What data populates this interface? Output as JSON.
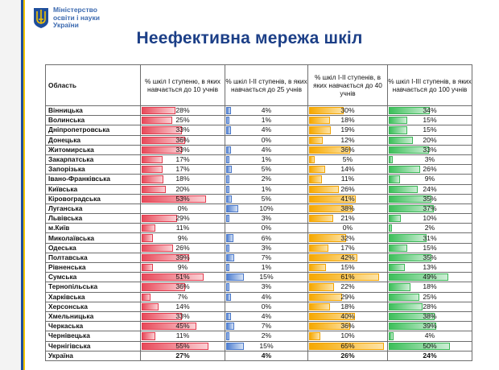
{
  "header": {
    "ministry_lines": [
      "Міністерство",
      "освіти і науки",
      "України"
    ],
    "title": "Неефективна мережа шкіл"
  },
  "table": {
    "columns": [
      "Область",
      "% шкіл І ступеню, в яких навчається до 10 учнів",
      "% шкіл І-ІІ ступенів, в яких навчається до 25 учнів",
      "% шкіл І-ІІ ступенів, в яких навчається до 40 учнів",
      "% шкіл І-ІІІ ступенів, в яких навчається до 100 учнів"
    ],
    "rows": [
      {
        "region": "Вінницька",
        "v": [
          "28%",
          "4%",
          "30%",
          "34%"
        ],
        "p": [
          28,
          4,
          30,
          34
        ]
      },
      {
        "region": "Волинська",
        "v": [
          "25%",
          "1%",
          "18%",
          "15%"
        ],
        "p": [
          25,
          1,
          18,
          15
        ]
      },
      {
        "region": "Дніпропетровська",
        "v": [
          "33%",
          "4%",
          "19%",
          "15%"
        ],
        "p": [
          33,
          4,
          19,
          15
        ]
      },
      {
        "region": "Донецька",
        "v": [
          "36%",
          "0%",
          "12%",
          "20%"
        ],
        "p": [
          36,
          0,
          12,
          20
        ]
      },
      {
        "region": "Житомирська",
        "v": [
          "33%",
          "4%",
          "36%",
          "33%"
        ],
        "p": [
          33,
          4,
          36,
          33
        ]
      },
      {
        "region": "Закарпатська",
        "v": [
          "17%",
          "1%",
          "5%",
          "3%"
        ],
        "p": [
          17,
          1,
          5,
          3
        ]
      },
      {
        "region": "Запорізька",
        "v": [
          "17%",
          "5%",
          "14%",
          "26%"
        ],
        "p": [
          17,
          5,
          14,
          26
        ]
      },
      {
        "region": "Івано-Франківська",
        "v": [
          "18%",
          "2%",
          "11%",
          "9%"
        ],
        "p": [
          18,
          2,
          11,
          9
        ]
      },
      {
        "region": "Київська",
        "v": [
          "20%",
          "1%",
          "26%",
          "24%"
        ],
        "p": [
          20,
          1,
          26,
          24
        ]
      },
      {
        "region": "Кіровоградська",
        "v": [
          "53%",
          "5%",
          "41%",
          "35%"
        ],
        "p": [
          53,
          5,
          41,
          35
        ]
      },
      {
        "region": "Луганська",
        "v": [
          "0%",
          "10%",
          "38%",
          "37%"
        ],
        "p": [
          0,
          10,
          38,
          37
        ]
      },
      {
        "region": "Львівська",
        "v": [
          "29%",
          "3%",
          "21%",
          "10%"
        ],
        "p": [
          29,
          3,
          21,
          10
        ]
      },
      {
        "region": "м.Київ",
        "v": [
          "11%",
          "0%",
          "0%",
          "2%"
        ],
        "p": [
          11,
          0,
          0,
          2
        ]
      },
      {
        "region": "Миколаївська",
        "v": [
          "9%",
          "6%",
          "32%",
          "31%"
        ],
        "p": [
          9,
          6,
          32,
          31
        ]
      },
      {
        "region": "Одеська",
        "v": [
          "26%",
          "3%",
          "17%",
          "15%"
        ],
        "p": [
          26,
          3,
          17,
          15
        ]
      },
      {
        "region": "Полтавська",
        "v": [
          "39%",
          "7%",
          "42%",
          "35%"
        ],
        "p": [
          39,
          7,
          42,
          35
        ]
      },
      {
        "region": "Рівненська",
        "v": [
          "9%",
          "1%",
          "15%",
          "13%"
        ],
        "p": [
          9,
          1,
          15,
          13
        ]
      },
      {
        "region": "Сумська",
        "v": [
          "51%",
          "15%",
          "61%",
          "49%"
        ],
        "p": [
          51,
          15,
          61,
          49
        ]
      },
      {
        "region": "Тернопільська",
        "v": [
          "36%",
          "3%",
          "22%",
          "18%"
        ],
        "p": [
          36,
          3,
          22,
          18
        ]
      },
      {
        "region": "Харківська",
        "v": [
          "7%",
          "4%",
          "29%",
          "25%"
        ],
        "p": [
          7,
          4,
          29,
          25
        ]
      },
      {
        "region": "Херсонська",
        "v": [
          "14%",
          "0%",
          "18%",
          "28%"
        ],
        "p": [
          14,
          0,
          18,
          28
        ]
      },
      {
        "region": "Хмельницька",
        "v": [
          "33%",
          "4%",
          "40%",
          "38%"
        ],
        "p": [
          33,
          4,
          40,
          38
        ]
      },
      {
        "region": "Черкаська",
        "v": [
          "45%",
          "7%",
          "36%",
          "39%"
        ],
        "p": [
          45,
          7,
          36,
          39
        ]
      },
      {
        "region": "Чернівецька",
        "v": [
          "11%",
          "2%",
          "10%",
          "4%"
        ],
        "p": [
          11,
          2,
          10,
          4
        ]
      },
      {
        "region": "Чернігівська",
        "v": [
          "55%",
          "15%",
          "65%",
          "50%"
        ],
        "p": [
          55,
          15,
          65,
          50
        ]
      }
    ],
    "total": {
      "region": "Україна",
      "v": [
        "27%",
        "4%",
        "26%",
        "24%"
      ]
    }
  },
  "colors": {
    "title": "#1c3f87",
    "col1": "#e84a5a",
    "col2": "#4f7fd0",
    "col3": "#f6a800",
    "col4": "#3cbf5a"
  }
}
